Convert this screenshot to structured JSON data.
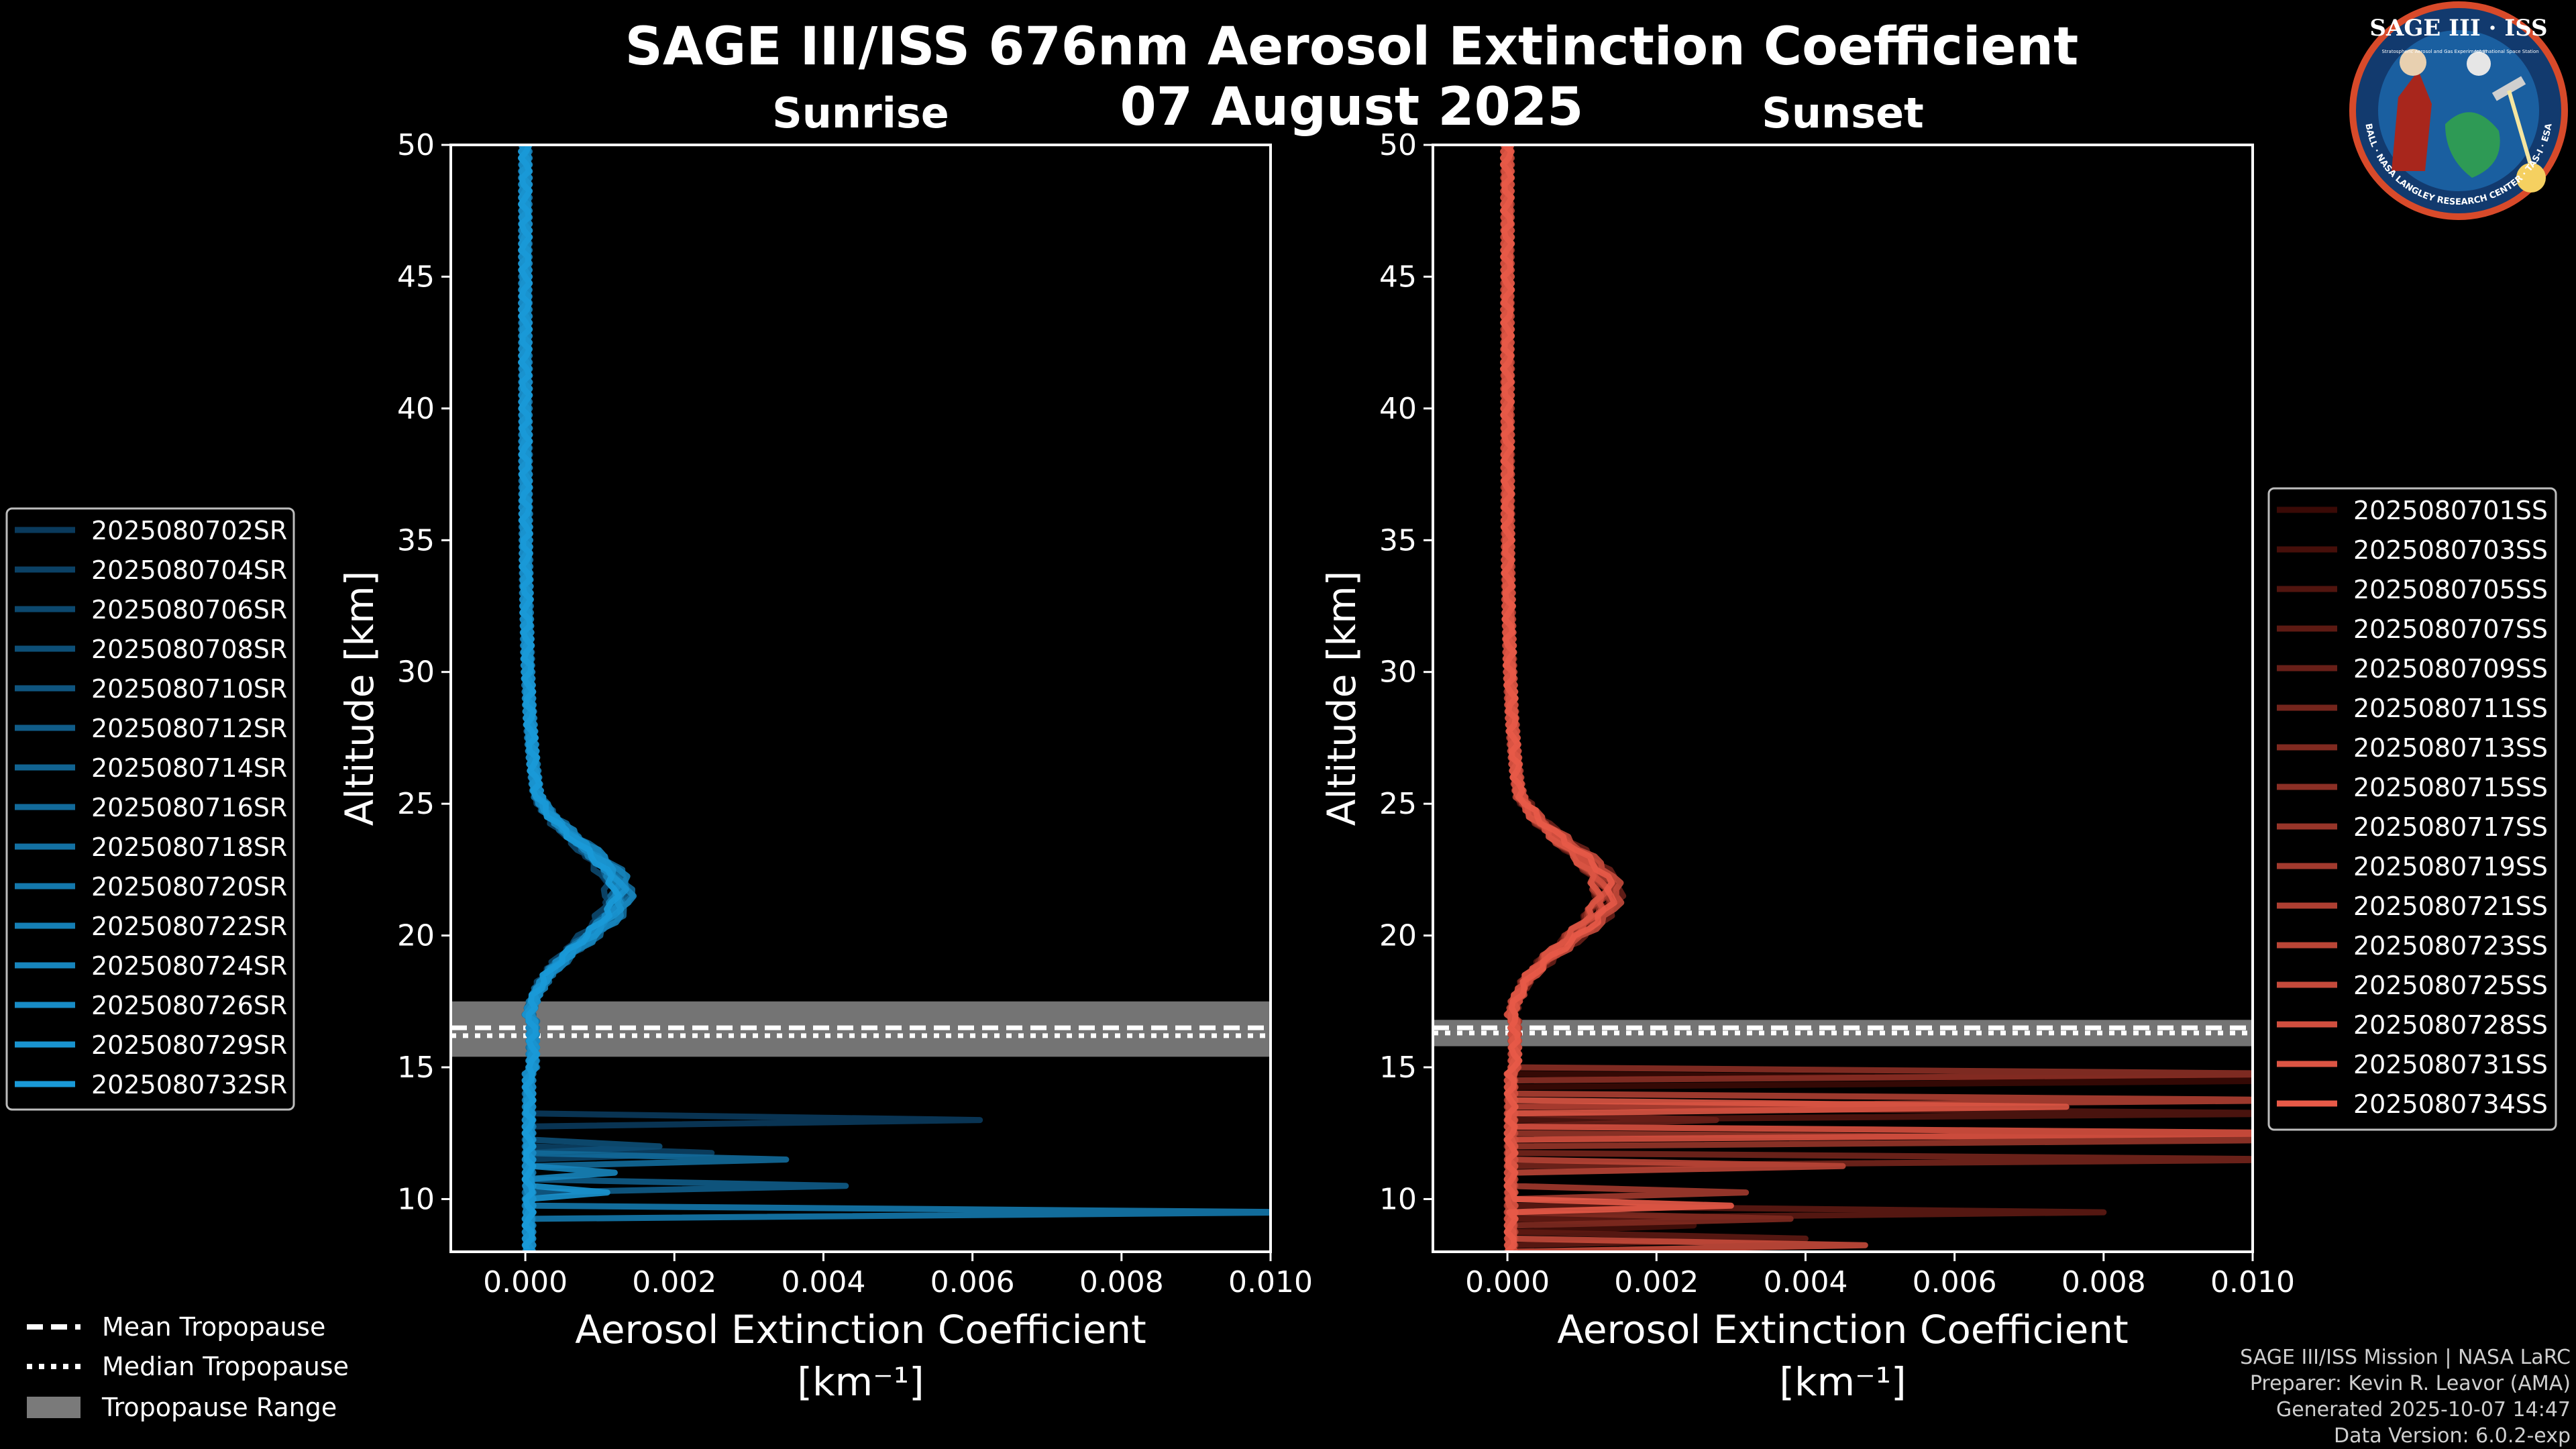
{
  "figure": {
    "title_line1": "SAGE III/ISS 676nm Aerosol Extinction Coefficient",
    "title_line2": "07 August 2025",
    "logo": {
      "top_text": "SAGE III · ISS",
      "small_text_left": "Stratospheric Aerosol and Gas Experiment III",
      "small_text_right": "International Space Station",
      "ring_text": "BALL · NASA LANGLEY RESEARCH CENTER · TAS-I · ESA"
    },
    "credits": [
      "SAGE III/ISS Mission | NASA LaRC",
      "Preparer: Kevin R. Leavor (AMA)",
      "Generated 2025-10-07 14:47",
      "Data Version: 6.0.2-exp"
    ],
    "tropopause_legend": [
      {
        "label": "Mean Tropopause",
        "style": "dashed"
      },
      {
        "label": "Median Tropopause",
        "style": "dotted"
      },
      {
        "label": "Tropopause Range",
        "style": "band"
      }
    ]
  },
  "chart_data": [
    {
      "type": "line",
      "panel": "sunrise",
      "title": "Sunrise",
      "xlabel": "Aerosol Extinction Coefficient",
      "xunits": "[km⁻¹]",
      "ylabel": "Altitude [km]",
      "xlim": [
        -0.001,
        0.01
      ],
      "ylim": [
        8,
        50
      ],
      "xticks": [
        "0.000",
        "0.002",
        "0.004",
        "0.006",
        "0.008",
        "0.010"
      ],
      "xtick_values": [
        0,
        0.002,
        0.004,
        0.006,
        0.008,
        0.01
      ],
      "yticks": [
        10,
        15,
        20,
        25,
        30,
        35,
        40,
        45,
        50
      ],
      "tropopause": {
        "range": [
          15.4,
          17.5
        ],
        "mean": 16.5,
        "median": 16.2
      },
      "color_dark": "#0a3a5c",
      "color_light": "#1a9ad8",
      "series": [
        {
          "name": "2025080702SR",
          "peak": 0.00115,
          "spikes": [
            [
              12.9,
              0.0061
            ]
          ]
        },
        {
          "name": "2025080704SR",
          "peak": 0.00125,
          "spikes": [
            [
              11.8,
              0.0025
            ]
          ]
        },
        {
          "name": "2025080706SR",
          "peak": 0.0011,
          "spikes": []
        },
        {
          "name": "2025080708SR",
          "peak": 0.0013,
          "spikes": [
            [
              12.1,
              0.0018
            ]
          ]
        },
        {
          "name": "2025080710SR",
          "peak": 0.0012,
          "spikes": []
        },
        {
          "name": "2025080712SR",
          "peak": 0.00135,
          "spikes": [
            [
              10.5,
              0.0043
            ]
          ]
        },
        {
          "name": "2025080714SR",
          "peak": 0.0012,
          "spikes": []
        },
        {
          "name": "2025080716SR",
          "peak": 0.0014,
          "spikes": [
            [
              11.5,
              0.0035
            ]
          ]
        },
        {
          "name": "2025080718SR",
          "peak": 0.00125,
          "spikes": []
        },
        {
          "name": "2025080720SR",
          "peak": 0.0013,
          "spikes": [
            [
              9.4,
              0.0105
            ]
          ]
        },
        {
          "name": "2025080722SR",
          "peak": 0.0012,
          "spikes": []
        },
        {
          "name": "2025080724SR",
          "peak": 0.0014,
          "spikes": [
            [
              11.0,
              0.0012
            ]
          ]
        },
        {
          "name": "2025080726SR",
          "peak": 0.00125,
          "spikes": []
        },
        {
          "name": "2025080729SR",
          "peak": 0.0013,
          "spikes": [
            [
              10.2,
              0.0011
            ]
          ]
        },
        {
          "name": "2025080732SR",
          "peak": 0.0012,
          "spikes": []
        }
      ]
    },
    {
      "type": "line",
      "panel": "sunset",
      "title": "Sunset",
      "xlabel": "Aerosol Extinction Coefficient",
      "xunits": "[km⁻¹]",
      "ylabel": "Altitude [km]",
      "xlim": [
        -0.001,
        0.01
      ],
      "ylim": [
        8,
        50
      ],
      "xticks": [
        "0.000",
        "0.002",
        "0.004",
        "0.006",
        "0.008",
        "0.010"
      ],
      "xtick_values": [
        0,
        0.002,
        0.004,
        0.006,
        0.008,
        0.01
      ],
      "yticks": [
        10,
        15,
        20,
        25,
        30,
        35,
        40,
        45,
        50
      ],
      "tropopause": {
        "range": [
          15.8,
          16.8
        ],
        "mean": 16.5,
        "median": 16.3
      },
      "color_dark": "#3a0a06",
      "color_light": "#e85a48",
      "series": [
        {
          "name": "2025080701SS",
          "peak": 0.0013,
          "spikes": [
            [
              14.4,
              0.011
            ]
          ]
        },
        {
          "name": "2025080703SS",
          "peak": 0.0014,
          "spikes": [
            [
              12.6,
              0.011
            ],
            [
              9.0,
              0.0025
            ]
          ]
        },
        {
          "name": "2025080705SS",
          "peak": 0.0012,
          "spikes": [
            [
              13.2,
              0.011
            ]
          ]
        },
        {
          "name": "2025080707SS",
          "peak": 0.0013,
          "spikes": [
            [
              9.6,
              0.008
            ],
            [
              8.6,
              0.004
            ]
          ]
        },
        {
          "name": "2025080709SS",
          "peak": 0.0015,
          "spikes": [
            [
              12.9,
              0.0028
            ]
          ]
        },
        {
          "name": "2025080711SS",
          "peak": 0.0012,
          "spikes": [
            [
              11.6,
              0.011
            ]
          ]
        },
        {
          "name": "2025080713SS",
          "peak": 0.0014,
          "spikes": [
            [
              9.2,
              0.0038
            ]
          ]
        },
        {
          "name": "2025080715SS",
          "peak": 0.0013,
          "spikes": [
            [
              14.8,
              0.011
            ]
          ]
        },
        {
          "name": "2025080717SS",
          "peak": 0.0012,
          "spikes": [
            [
              12.2,
              0.011
            ]
          ]
        },
        {
          "name": "2025080719SS",
          "peak": 0.0014,
          "spikes": [
            [
              10.3,
              0.0032
            ]
          ]
        },
        {
          "name": "2025080721SS",
          "peak": 0.0013,
          "spikes": [
            [
              13.8,
              0.011
            ]
          ]
        },
        {
          "name": "2025080723SS",
          "peak": 0.0012,
          "spikes": [
            [
              11.2,
              0.0045
            ]
          ]
        },
        {
          "name": "2025080725SS",
          "peak": 0.0015,
          "spikes": [
            [
              8.2,
              0.0048
            ]
          ]
        },
        {
          "name": "2025080728SS",
          "peak": 0.0013,
          "spikes": [
            [
              12.4,
              0.011
            ]
          ]
        },
        {
          "name": "2025080731SS",
          "peak": 0.0012,
          "spikes": [
            [
              13.5,
              0.0075
            ]
          ]
        },
        {
          "name": "2025080734SS",
          "peak": 0.0014,
          "spikes": [
            [
              9.8,
              0.003
            ]
          ]
        }
      ]
    }
  ]
}
